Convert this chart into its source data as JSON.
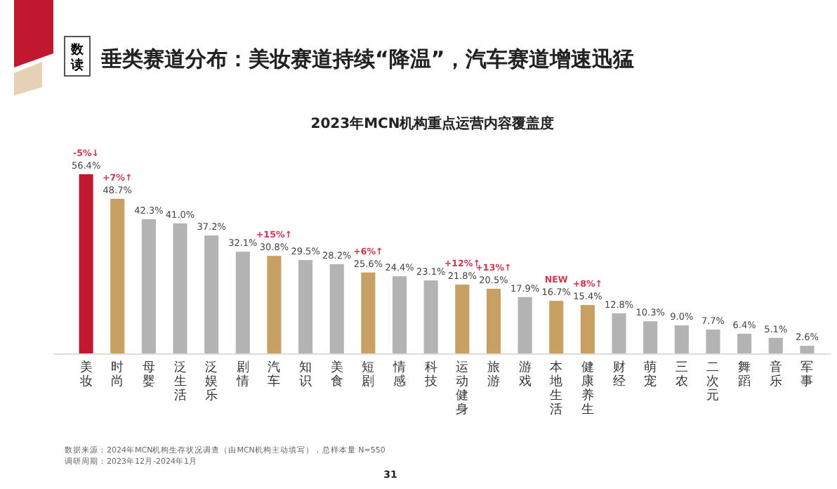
{
  "chart_data": {
    "type": "bar",
    "title": "垂类赛道分布：美妆赛道持续“降温”，汽车赛道增速迅猛",
    "subtitle": "2023年MCN机构重点运营内容覆盖度",
    "categories": [
      "美妆",
      "时尚",
      "母婴",
      "泛生活",
      "泛娱乐",
      "剧情",
      "汽车",
      "知识",
      "美食",
      "短剧",
      "情感",
      "科技",
      "运动健身",
      "旅游",
      "游戏",
      "本地生活",
      "健康养生",
      "财经",
      "萌宠",
      "三农",
      "二次元",
      "舞蹈",
      "音乐",
      "军事"
    ],
    "values": [
      56.4,
      48.7,
      42.3,
      41.0,
      37.2,
      32.1,
      30.8,
      29.5,
      28.2,
      25.6,
      24.4,
      23.1,
      21.8,
      20.5,
      17.9,
      16.7,
      15.4,
      12.8,
      10.3,
      9.0,
      7.7,
      6.4,
      5.1,
      2.6
    ],
    "value_labels": [
      "56.4%",
      "48.7%",
      "42.3%",
      "41.0%",
      "37.2%",
      "32.1%",
      "30.8%",
      "29.5%",
      "28.2%",
      "25.6%",
      "24.4%",
      "23.1%",
      "21.8%",
      "20.5%",
      "17.9%",
      "16.7%",
      "15.4%",
      "12.8%",
      "10.3%",
      "9.0%",
      "7.7%",
      "6.4%",
      "5.1%",
      "2.6%"
    ],
    "colors": [
      "#c0182e",
      "#c9a063",
      "#b3b3b3",
      "#b3b3b3",
      "#b3b3b3",
      "#b3b3b3",
      "#c9a063",
      "#b3b3b3",
      "#b3b3b3",
      "#c9a063",
      "#b3b3b3",
      "#b3b3b3",
      "#c9a063",
      "#c9a063",
      "#b3b3b3",
      "#c9a063",
      "#c9a063",
      "#b3b3b3",
      "#b3b3b3",
      "#b3b3b3",
      "#b3b3b3",
      "#b3b3b3",
      "#b3b3b3",
      "#b3b3b3"
    ],
    "annotations": [
      "数读",
      {
        "text": "-5%↓",
        "x": "美妆",
        "y": 56.4
      },
      {
        "text": "+7%↑",
        "x": "时尚",
        "y": 48.7
      },
      {
        "text": "+15%↑",
        "x": "汽车",
        "y": 30.8
      },
      {
        "text": "+6%↑",
        "x": "短剧",
        "y": 25.6
      },
      {
        "text": "+12%↑",
        "x": "运动健身",
        "y": 21.8
      },
      {
        "text": "+13%↑",
        "x": "旅游",
        "y": 20.5
      },
      {
        "text": "NEW",
        "x": "本地生活",
        "y": 16.7
      },
      {
        "text": "+8%↑",
        "x": "健康养生",
        "y": 15.4
      },
      "数据来源：2024年MCN机构生存状况调查（由MCN机构主动填写），总样本量 N=550",
      "调研周期：2023年12月-2024年1月",
      "31"
    ],
    "grid": false
  }
}
